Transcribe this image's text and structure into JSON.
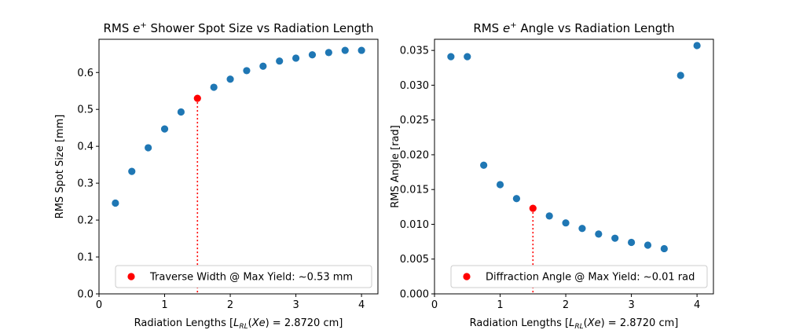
{
  "colors": {
    "series": "#1f77b4",
    "highlight": "#ff0000",
    "guide": "#ff0000"
  },
  "chart_data": [
    {
      "type": "scatter",
      "title_parts": [
        "RMS ",
        "e",
        "+",
        " Shower Spot Size vs Radiation Length"
      ],
      "xlabel_parts": [
        "Radiation Lengths [",
        "L",
        "RL",
        "(",
        "Xe",
        ") = 2.8720 cm]"
      ],
      "ylabel": "RMS Spot Size [mm]",
      "xlim": [
        0,
        4.25
      ],
      "ylim": [
        0,
        0.69
      ],
      "xticks": [
        0,
        1,
        2,
        3,
        4
      ],
      "xtick_labels": [
        "0",
        "1",
        "2",
        "3",
        "4"
      ],
      "yticks": [
        0.0,
        0.1,
        0.2,
        0.3,
        0.4,
        0.5,
        0.6
      ],
      "ytick_labels": [
        "0.0",
        "0.1",
        "0.2",
        "0.3",
        "0.4",
        "0.5",
        "0.6"
      ],
      "x": [
        0.25,
        0.5,
        0.75,
        1.0,
        1.25,
        1.75,
        2.0,
        2.25,
        2.5,
        2.75,
        3.0,
        3.25,
        3.5,
        3.75,
        4.0
      ],
      "y": [
        0.246,
        0.332,
        0.396,
        0.447,
        0.493,
        0.56,
        0.582,
        0.605,
        0.617,
        0.631,
        0.639,
        0.648,
        0.654,
        0.66,
        0.66
      ],
      "highlight": {
        "x": 1.5,
        "y": 0.53
      },
      "legend": {
        "label": "Traverse Width @ Max Yield: ~0.53 mm",
        "placement": "lower-right"
      }
    },
    {
      "type": "scatter",
      "title_parts": [
        "RMS ",
        "e",
        "+",
        " Angle vs Radiation Length"
      ],
      "xlabel_parts": [
        "Radiation Lengths [",
        "L",
        "RL",
        "(",
        "Xe",
        ") = 2.8720 cm]"
      ],
      "ylabel": "RMS Angle [rad]",
      "xlim": [
        0,
        4.25
      ],
      "ylim": [
        0,
        0.0366
      ],
      "xticks": [
        0,
        1,
        2,
        3,
        4
      ],
      "xtick_labels": [
        "0",
        "1",
        "2",
        "3",
        "4"
      ],
      "yticks": [
        0.0,
        0.005,
        0.01,
        0.015,
        0.02,
        0.025,
        0.03,
        0.035
      ],
      "ytick_labels": [
        "0.000",
        "0.005",
        "0.010",
        "0.015",
        "0.020",
        "0.025",
        "0.030",
        "0.035"
      ],
      "x": [
        0.25,
        0.5,
        0.75,
        1.0,
        1.25,
        1.75,
        2.0,
        2.25,
        2.5,
        2.75,
        3.0,
        3.25,
        3.5,
        3.75,
        4.0
      ],
      "y": [
        0.0341,
        0.0341,
        0.0185,
        0.0157,
        0.0137,
        0.0112,
        0.0102,
        0.0094,
        0.0086,
        0.008,
        0.0074,
        0.007,
        0.0065,
        0.0314,
        0.0357
      ],
      "highlight": {
        "x": 1.5,
        "y": 0.0123
      },
      "legend": {
        "label": "Diffraction Angle @ Max Yield: ~0.01 rad",
        "placement": "lower-right"
      }
    }
  ]
}
